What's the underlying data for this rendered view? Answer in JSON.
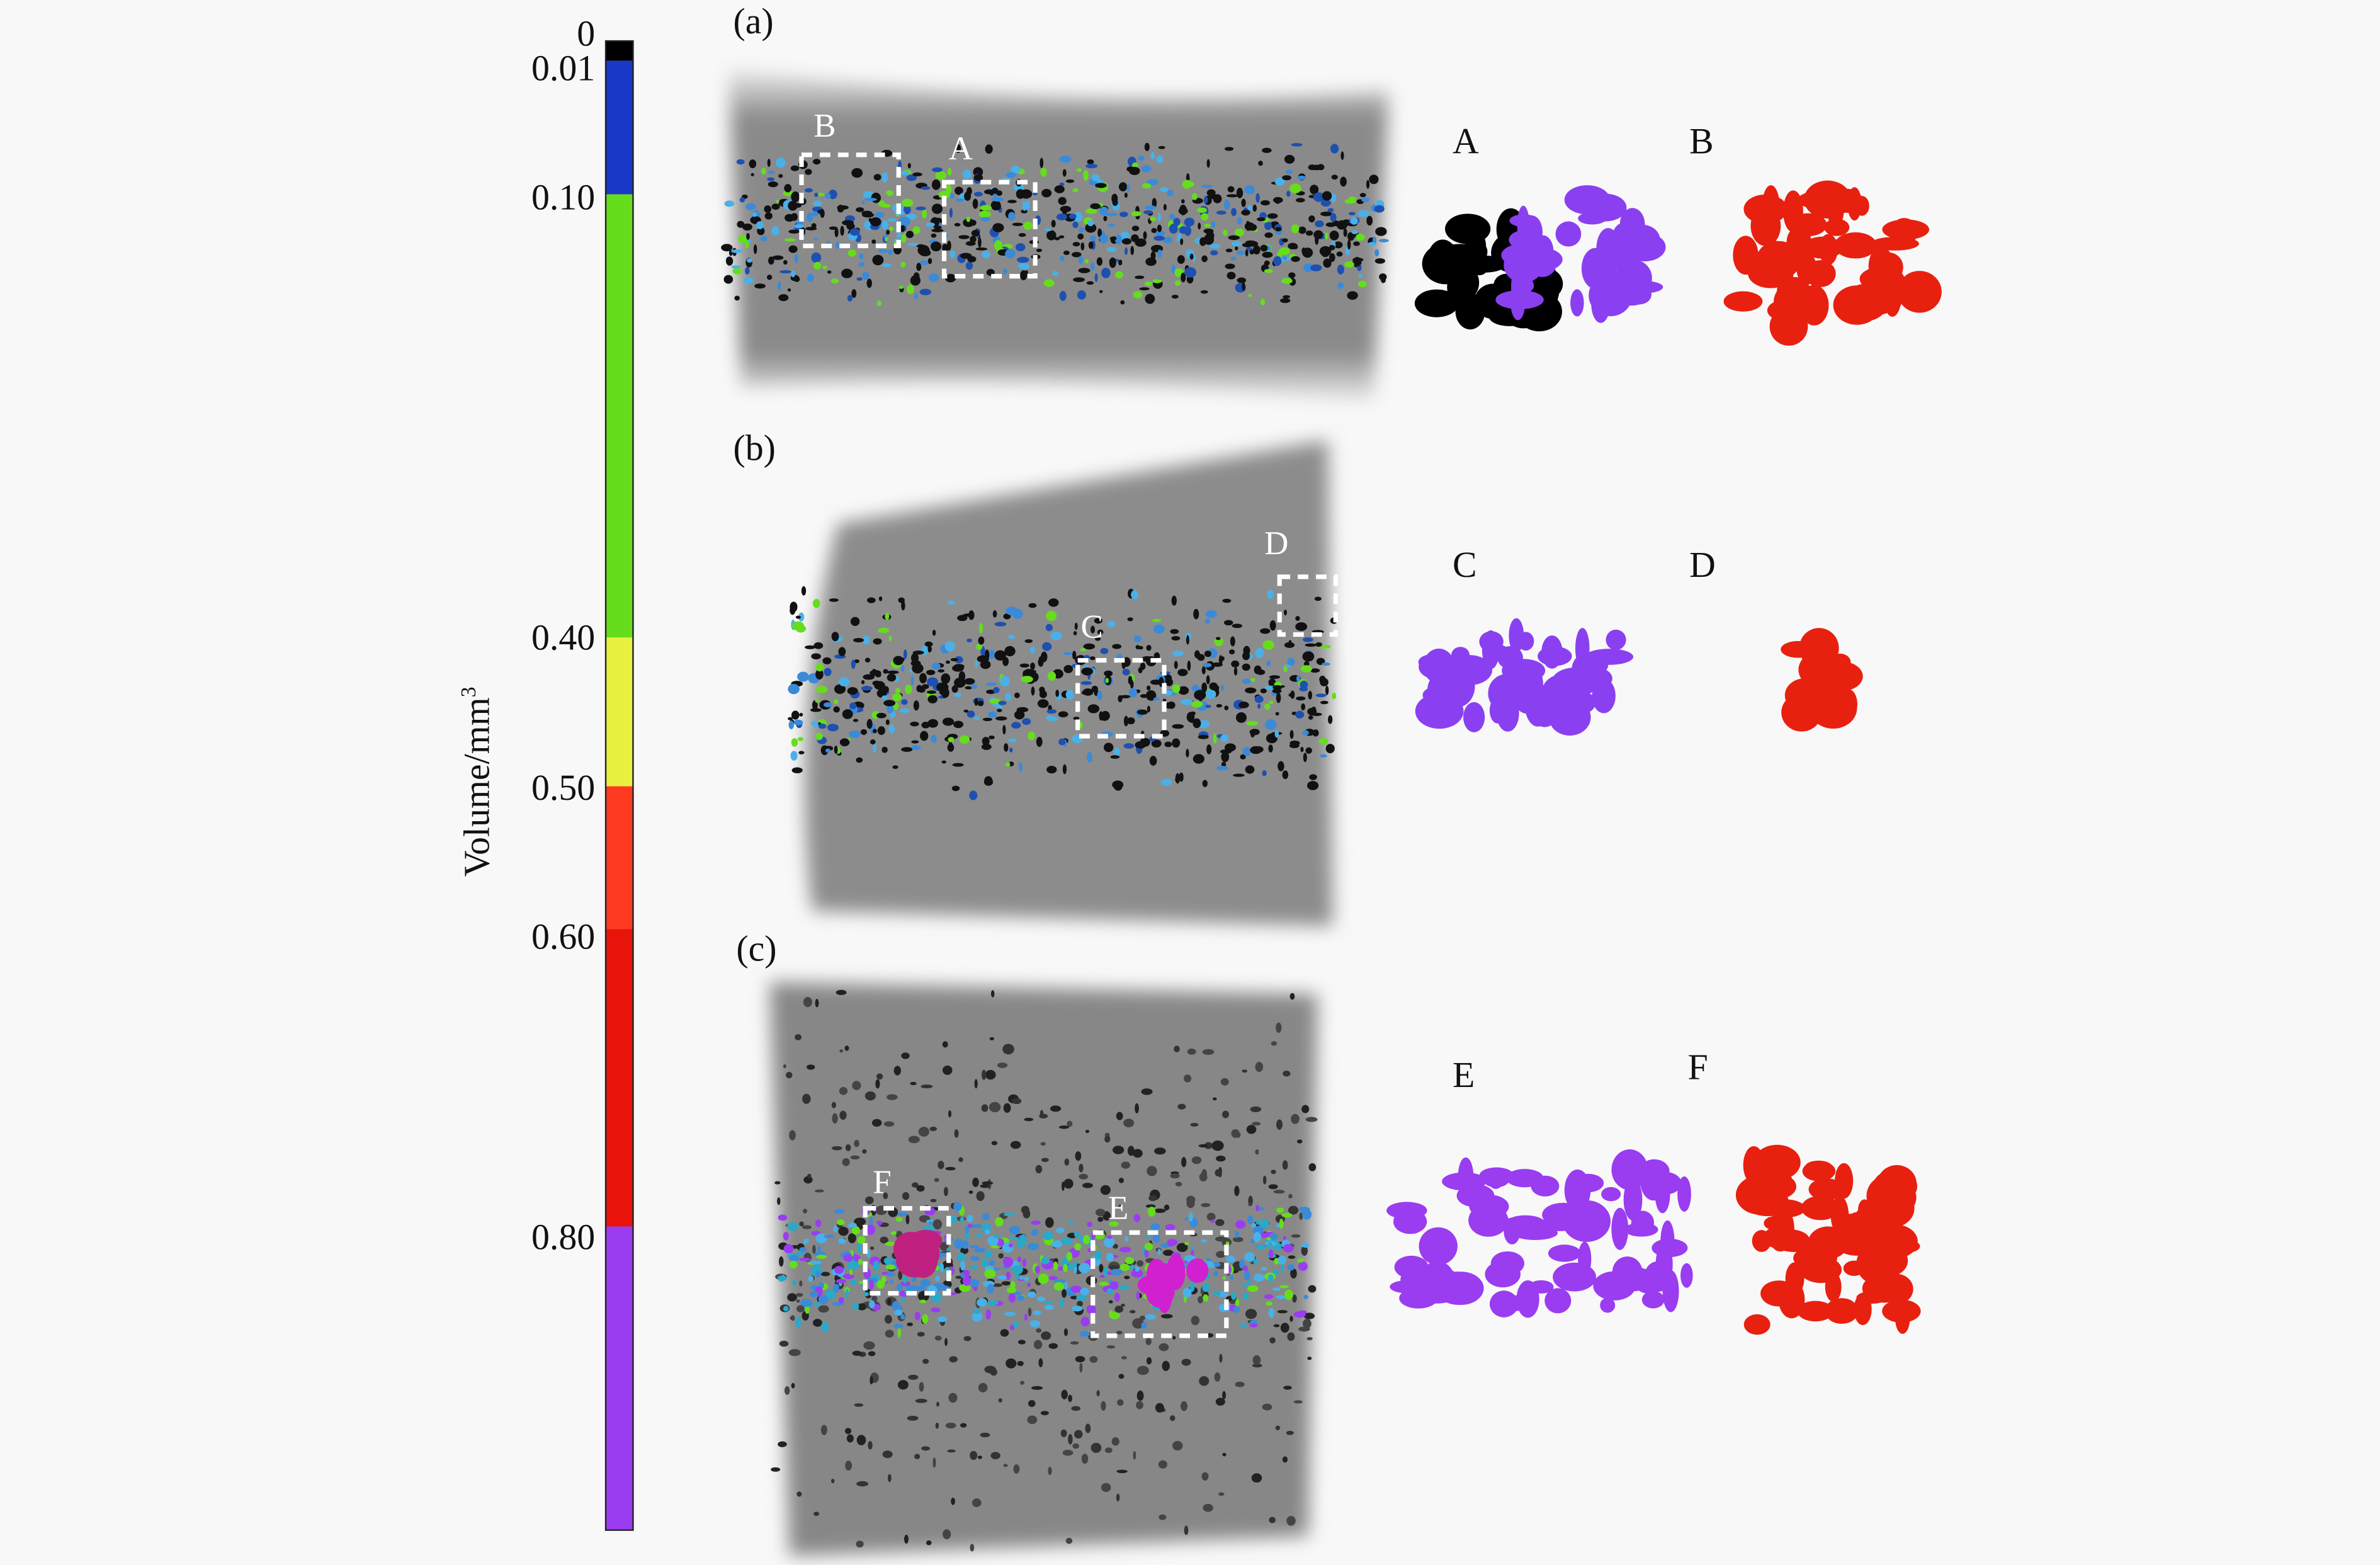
{
  "colorbar": {
    "ticks": [
      "0",
      "0.01",
      "0.10",
      "0.40",
      "0.50",
      "0.60",
      "0.80"
    ],
    "label": {
      "text": "Volume/mm",
      "superscript": "3"
    }
  },
  "panels": [
    {
      "label": "(a)",
      "boxes": [
        "B",
        "A"
      ],
      "details": [
        "A",
        "B"
      ]
    },
    {
      "label": "(b)",
      "boxes": [
        "C",
        "D"
      ],
      "details": [
        "C",
        "D"
      ]
    },
    {
      "label": "(c)",
      "boxes": [
        "F",
        "E"
      ],
      "details": [
        "E",
        "F"
      ]
    }
  ]
}
